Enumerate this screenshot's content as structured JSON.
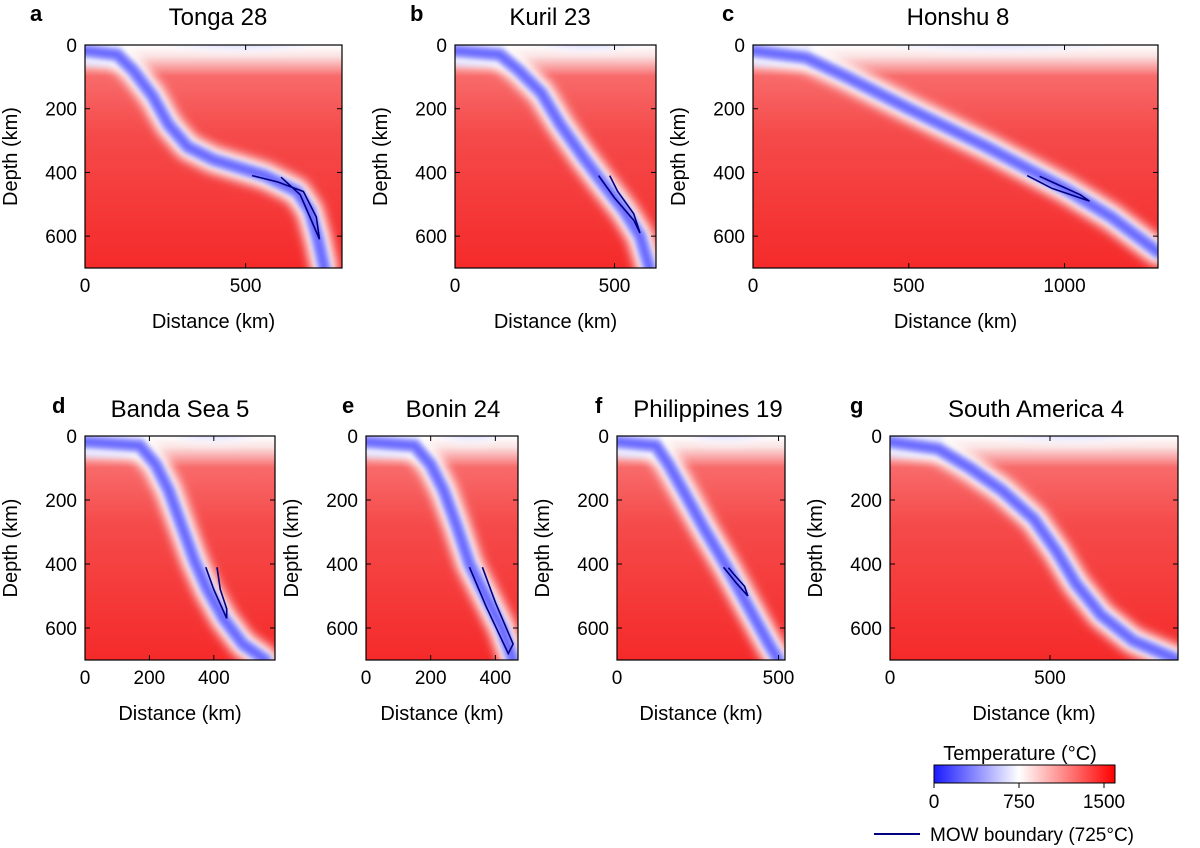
{
  "figure": {
    "colorbar": {
      "title": "Temperature (°C)",
      "ticks": [
        0,
        750,
        1500
      ],
      "tick_labels": [
        "0",
        "750",
        "1500"
      ],
      "range": [
        0,
        1600
      ],
      "colors": {
        "cold": "#1a1aff",
        "mid": "#ffffff",
        "hot": "#ff0000"
      }
    },
    "mow_legend": {
      "label": "MOW boundary (725°C)",
      "color": "#000080"
    }
  },
  "chart_data": [
    {
      "type": "heatmap",
      "letter": "a",
      "title": "Tonga 28",
      "xlabel": "Distance (km)",
      "ylabel": "Depth (km)",
      "xlim": [
        0,
        800
      ],
      "ylim": [
        0,
        700
      ],
      "xticks": [
        0,
        500
      ],
      "yticks": [
        0,
        200,
        400,
        600
      ],
      "slab_path": [
        [
          100,
          30
        ],
        [
          150,
          80
        ],
        [
          210,
          160
        ],
        [
          260,
          250
        ],
        [
          320,
          320
        ],
        [
          400,
          360
        ],
        [
          560,
          410
        ],
        [
          660,
          460
        ],
        [
          700,
          520
        ],
        [
          725,
          610
        ],
        [
          745,
          700
        ]
      ],
      "mow_outline": [
        [
          520,
          410
        ],
        [
          600,
          430
        ],
        [
          680,
          460
        ],
        [
          720,
          540
        ],
        [
          730,
          610
        ],
        [
          700,
          540
        ],
        [
          670,
          470
        ],
        [
          610,
          415
        ]
      ]
    },
    {
      "type": "heatmap",
      "letter": "b",
      "title": "Kuril 23",
      "xlabel": "Distance (km)",
      "ylabel": "Depth (km)",
      "xlim": [
        0,
        630
      ],
      "ylim": [
        0,
        700
      ],
      "xticks": [
        0,
        500
      ],
      "yticks": [
        0,
        200,
        400,
        600
      ],
      "slab_path": [
        [
          140,
          30
        ],
        [
          200,
          80
        ],
        [
          270,
          150
        ],
        [
          330,
          250
        ],
        [
          400,
          350
        ],
        [
          460,
          430
        ],
        [
          530,
          520
        ],
        [
          580,
          600
        ],
        [
          610,
          700
        ]
      ],
      "mow_outline": [
        [
          450,
          410
        ],
        [
          500,
          480
        ],
        [
          560,
          550
        ],
        [
          580,
          590
        ],
        [
          560,
          530
        ],
        [
          510,
          460
        ],
        [
          485,
          410
        ]
      ]
    },
    {
      "type": "heatmap",
      "letter": "c",
      "title": "Honshu 8",
      "xlabel": "Distance (km)",
      "ylabel": "Depth (km)",
      "xlim": [
        0,
        1300
      ],
      "ylim": [
        0,
        700
      ],
      "xticks": [
        0,
        500,
        1000
      ],
      "yticks": [
        0,
        200,
        400,
        600
      ],
      "slab_path": [
        [
          170,
          40
        ],
        [
          300,
          100
        ],
        [
          500,
          200
        ],
        [
          750,
          320
        ],
        [
          1000,
          450
        ],
        [
          1150,
          540
        ],
        [
          1300,
          650
        ]
      ],
      "mow_outline": [
        [
          880,
          410
        ],
        [
          960,
          450
        ],
        [
          1080,
          490
        ],
        [
          1050,
          470
        ],
        [
          960,
          430
        ],
        [
          920,
          412
        ]
      ]
    },
    {
      "type": "heatmap",
      "letter": "d",
      "title": "Banda Sea 5",
      "xlabel": "Distance (km)",
      "ylabel": "Depth (km)",
      "xlim": [
        0,
        590
      ],
      "ylim": [
        0,
        700
      ],
      "xticks": [
        0,
        200,
        400
      ],
      "yticks": [
        0,
        200,
        400,
        600
      ],
      "slab_path": [
        [
          170,
          30
        ],
        [
          220,
          90
        ],
        [
          260,
          170
        ],
        [
          300,
          280
        ],
        [
          340,
          390
        ],
        [
          380,
          480
        ],
        [
          430,
          570
        ],
        [
          490,
          650
        ],
        [
          560,
          700
        ]
      ],
      "mow_outline": [
        [
          375,
          410
        ],
        [
          400,
          480
        ],
        [
          440,
          570
        ],
        [
          440,
          540
        ],
        [
          420,
          480
        ],
        [
          410,
          410
        ]
      ]
    },
    {
      "type": "heatmap",
      "letter": "e",
      "title": "Bonin 24",
      "xlabel": "Distance (km)",
      "ylabel": "Depth (km)",
      "xlim": [
        0,
        470
      ],
      "ylim": [
        0,
        700
      ],
      "xticks": [
        0,
        200,
        400
      ],
      "yticks": [
        0,
        200,
        400,
        600
      ],
      "slab_path": [
        [
          150,
          30
        ],
        [
          200,
          90
        ],
        [
          240,
          170
        ],
        [
          280,
          280
        ],
        [
          320,
          400
        ],
        [
          370,
          500
        ],
        [
          420,
          600
        ],
        [
          455,
          700
        ]
      ],
      "mow_outline": [
        [
          320,
          410
        ],
        [
          370,
          530
        ],
        [
          440,
          680
        ],
        [
          455,
          650
        ],
        [
          400,
          520
        ],
        [
          360,
          410
        ]
      ]
    },
    {
      "type": "heatmap",
      "letter": "f",
      "title": "Philippines 19",
      "xlabel": "Distance (km)",
      "ylabel": "Depth (km)",
      "xlim": [
        0,
        520
      ],
      "ylim": [
        0,
        700
      ],
      "xticks": [
        0,
        500
      ],
      "yticks": [
        0,
        200,
        400,
        600
      ],
      "slab_path": [
        [
          120,
          30
        ],
        [
          160,
          90
        ],
        [
          210,
          180
        ],
        [
          270,
          290
        ],
        [
          340,
          410
        ],
        [
          410,
          540
        ],
        [
          470,
          650
        ],
        [
          500,
          700
        ]
      ],
      "mow_outline": [
        [
          330,
          410
        ],
        [
          370,
          460
        ],
        [
          405,
          500
        ],
        [
          395,
          470
        ],
        [
          360,
          430
        ],
        [
          345,
          412
        ]
      ]
    },
    {
      "type": "heatmap",
      "letter": "g",
      "title": "South America 4",
      "xlabel": "Distance (km)",
      "ylabel": "Depth (km)",
      "xlim": [
        0,
        900
      ],
      "ylim": [
        0,
        700
      ],
      "xticks": [
        0,
        500
      ],
      "yticks": [
        0,
        200,
        400,
        600
      ],
      "slab_path": [
        [
          150,
          40
        ],
        [
          250,
          100
        ],
        [
          350,
          170
        ],
        [
          450,
          260
        ],
        [
          520,
          360
        ],
        [
          580,
          460
        ],
        [
          660,
          560
        ],
        [
          760,
          640
        ],
        [
          900,
          700
        ]
      ],
      "mow_outline": []
    }
  ]
}
